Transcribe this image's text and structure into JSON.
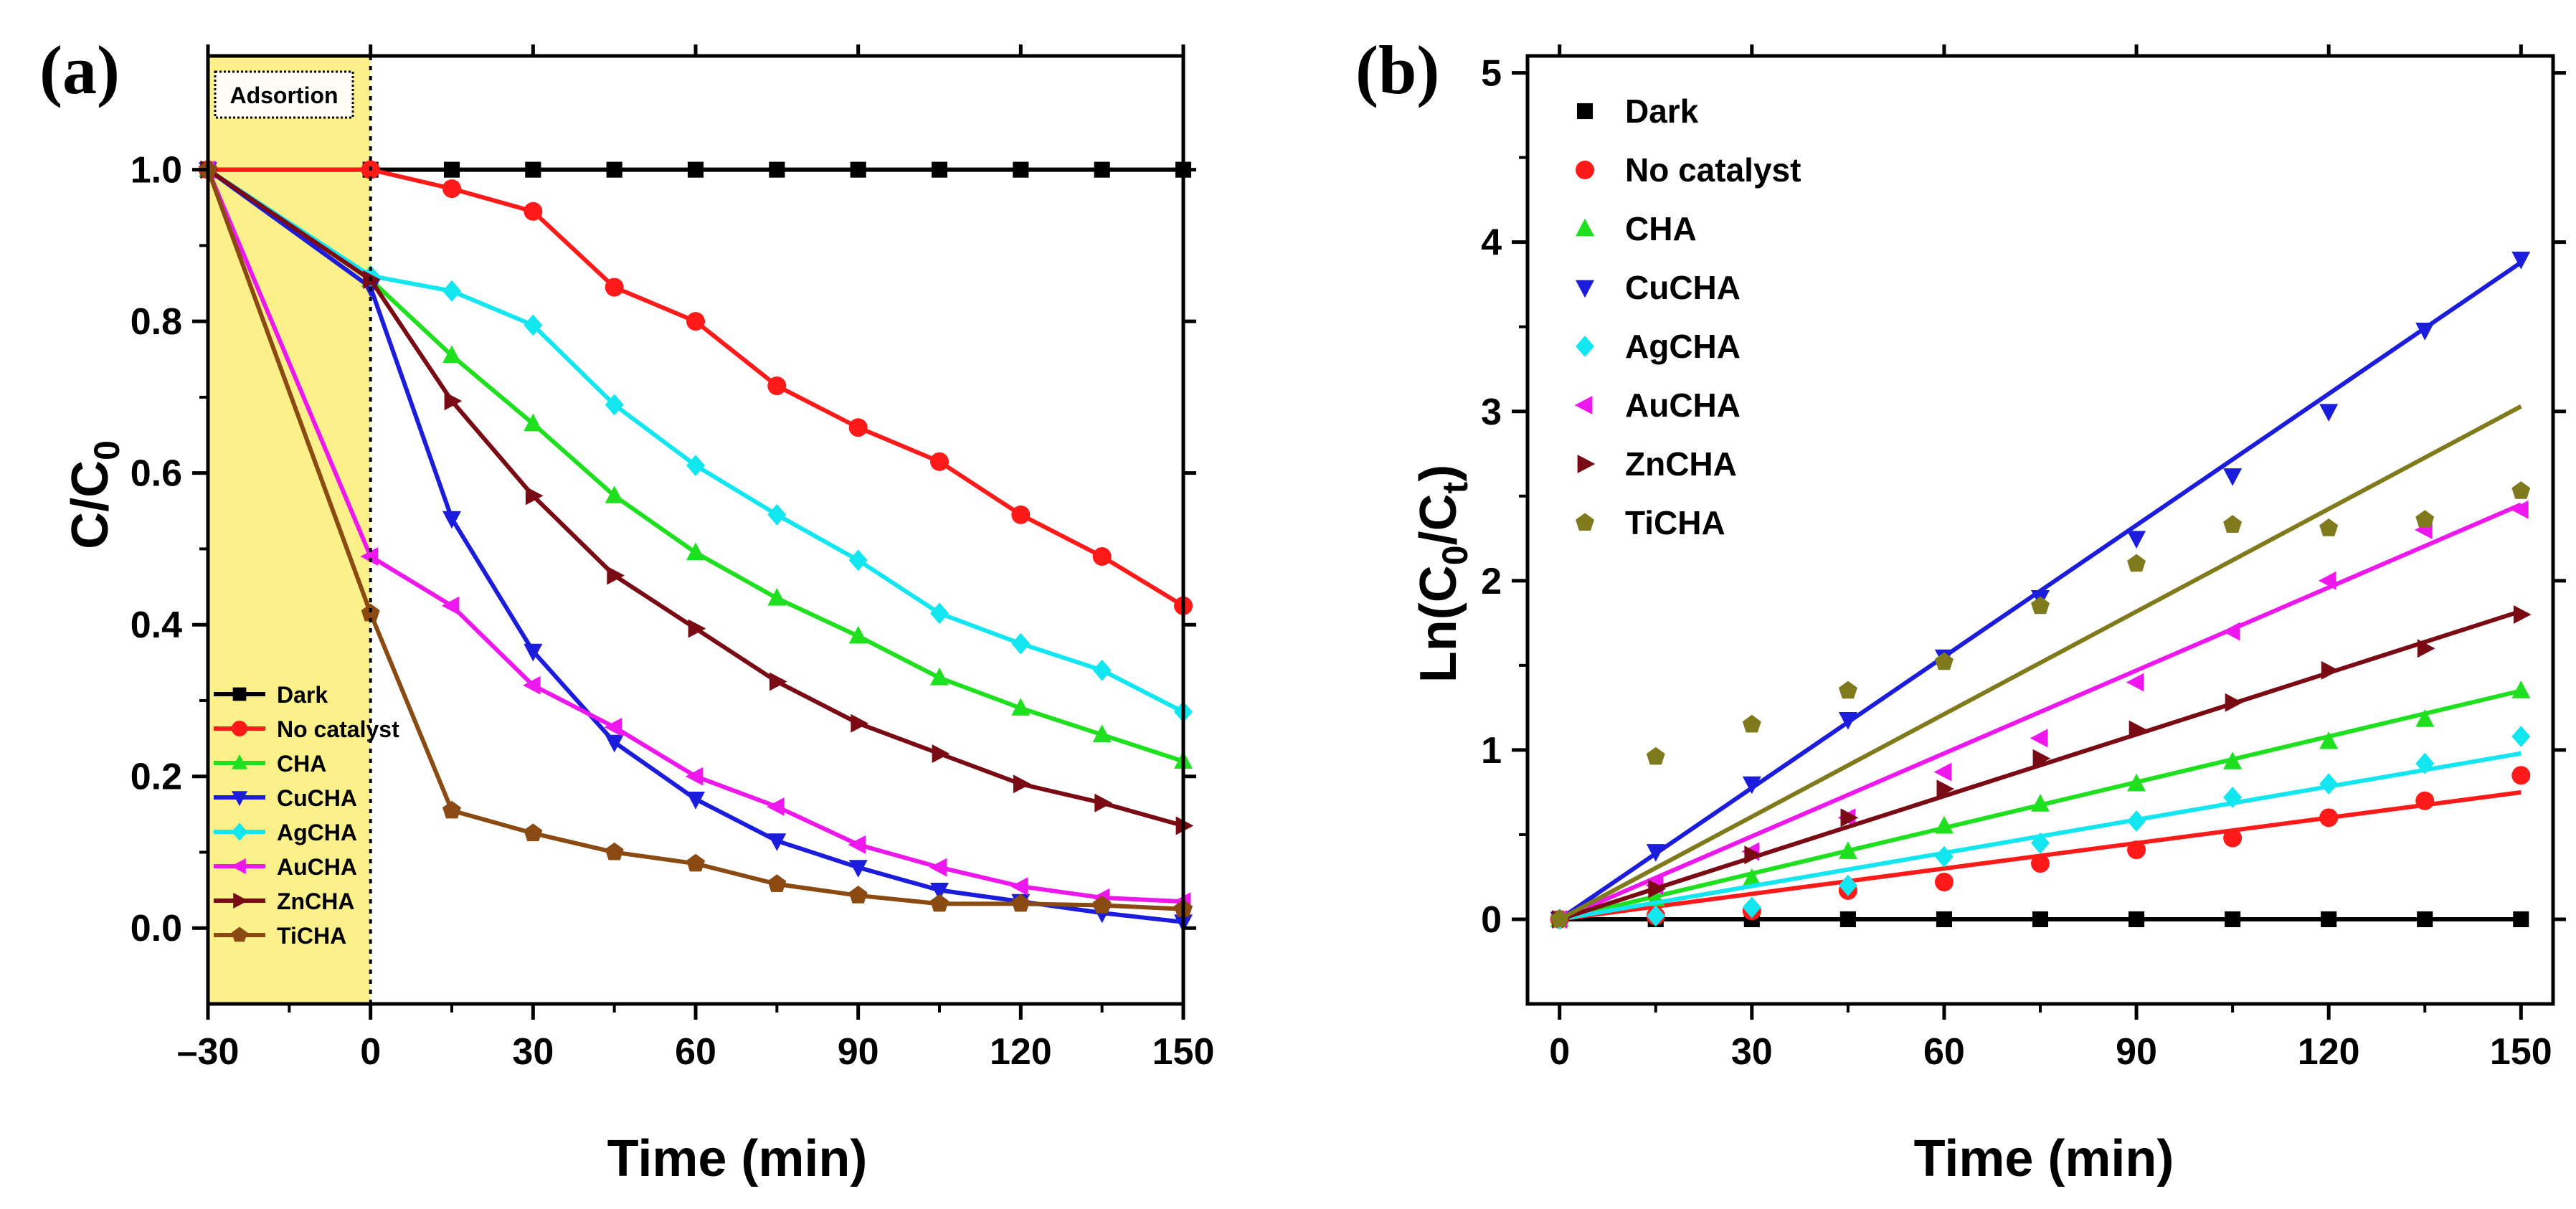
{
  "chart_data": [
    {
      "type": "line",
      "panel_label": "(a)",
      "xlabel": "Time (min)",
      "ylabel": "C/C0",
      "xlim": [
        -30,
        150
      ],
      "ylim": [
        -0.1,
        1.15
      ],
      "xticks": [
        -30,
        0,
        30,
        60,
        90,
        120,
        150
      ],
      "xtick_labels": [
        "–30",
        "0",
        "30",
        "60",
        "90",
        "120",
        "150"
      ],
      "yticks": [
        0.0,
        0.2,
        0.4,
        0.6,
        0.8,
        1.0
      ],
      "ytick_labels": [
        "0.0",
        "0.2",
        "0.4",
        "0.6",
        "0.8",
        "1.0"
      ],
      "adsorption_label": "Adsortion",
      "shaded_region": [
        -30,
        0
      ],
      "legend_position": "bottom-left",
      "x": [
        -30,
        0,
        15,
        30,
        45,
        60,
        75,
        90,
        105,
        120,
        135,
        150
      ],
      "series": [
        {
          "name": "Dark",
          "color": "#000000",
          "marker": "square",
          "values": [
            1.0,
            1.0,
            1.0,
            1.0,
            1.0,
            1.0,
            1.0,
            1.0,
            1.0,
            1.0,
            1.0,
            1.0
          ]
        },
        {
          "name": "No catalyst",
          "color": "#ff1a1a",
          "marker": "circle",
          "values": [
            1.0,
            1.0,
            0.975,
            0.945,
            0.845,
            0.8,
            0.715,
            0.66,
            0.615,
            0.545,
            0.49,
            0.425
          ]
        },
        {
          "name": "CHA",
          "color": "#1fe01f",
          "marker": "triangle-up",
          "values": [
            1.0,
            0.855,
            0.755,
            0.665,
            0.57,
            0.495,
            0.435,
            0.385,
            0.33,
            0.29,
            0.255,
            0.22
          ]
        },
        {
          "name": "CuCHA",
          "color": "#1c1cdc",
          "marker": "triangle-down",
          "values": [
            1.0,
            0.845,
            0.54,
            0.365,
            0.245,
            0.17,
            0.115,
            0.08,
            0.05,
            0.035,
            0.02,
            0.008
          ]
        },
        {
          "name": "AgCHA",
          "color": "#12e6f0",
          "marker": "diamond",
          "values": [
            1.0,
            0.86,
            0.84,
            0.795,
            0.69,
            0.61,
            0.545,
            0.485,
            0.415,
            0.375,
            0.34,
            0.285
          ]
        },
        {
          "name": "AuCHA",
          "color": "#ee18ee",
          "marker": "triangle-left",
          "values": [
            1.0,
            0.49,
            0.425,
            0.32,
            0.265,
            0.2,
            0.16,
            0.11,
            0.08,
            0.055,
            0.04,
            0.035
          ]
        },
        {
          "name": "ZnCHA",
          "color": "#7a0a14",
          "marker": "triangle-right",
          "values": [
            1.0,
            0.855,
            0.695,
            0.57,
            0.465,
            0.395,
            0.325,
            0.27,
            0.23,
            0.19,
            0.165,
            0.135
          ]
        },
        {
          "name": "TiCHA",
          "color": "#8a4a12",
          "marker": "pentagon",
          "values": [
            1.0,
            0.415,
            0.155,
            0.125,
            0.1,
            0.085,
            0.058,
            0.043,
            0.032,
            0.032,
            0.03,
            0.025
          ]
        }
      ]
    },
    {
      "type": "scatter",
      "panel_label": "(b)",
      "xlabel": "Time (min)",
      "ylabel": "Ln(C0/Ct)",
      "xlim": [
        -5,
        155
      ],
      "ylim": [
        -0.5,
        5.1
      ],
      "xticks": [
        0,
        30,
        60,
        90,
        120,
        150
      ],
      "xtick_labels": [
        "0",
        "30",
        "60",
        "90",
        "120",
        "150"
      ],
      "yticks": [
        0,
        1,
        2,
        3,
        4,
        5
      ],
      "ytick_labels": [
        "0",
        "1",
        "2",
        "3",
        "4",
        "5"
      ],
      "legend_position": "top-left",
      "x": [
        0,
        15,
        30,
        45,
        60,
        75,
        90,
        105,
        120,
        135,
        150
      ],
      "series": [
        {
          "name": "Dark",
          "color": "#000000",
          "marker": "square",
          "values": [
            0,
            0,
            0,
            0,
            0,
            0,
            0,
            0,
            0,
            0,
            0
          ],
          "fit_end": 0.0
        },
        {
          "name": "No catalyst",
          "color": "#ff1a1a",
          "marker": "circle",
          "values": [
            0,
            0.02,
            0.05,
            0.17,
            0.22,
            0.33,
            0.41,
            0.48,
            0.6,
            0.7,
            0.85
          ],
          "fit_end": 0.75
        },
        {
          "name": "CHA",
          "color": "#1fe01f",
          "marker": "triangle-up",
          "values": [
            0,
            0.12,
            0.24,
            0.4,
            0.55,
            0.68,
            0.8,
            0.93,
            1.05,
            1.18,
            1.35
          ],
          "fit_end": 1.35
        },
        {
          "name": "CuCHA",
          "color": "#1c1cdc",
          "marker": "triangle-down",
          "values": [
            0,
            0.4,
            0.8,
            1.18,
            1.55,
            1.9,
            2.25,
            2.62,
            3.0,
            3.48,
            3.9
          ],
          "fit_end": 3.88
        },
        {
          "name": "AgCHA",
          "color": "#12e6f0",
          "marker": "diamond",
          "values": [
            0,
            0.02,
            0.07,
            0.2,
            0.37,
            0.45,
            0.58,
            0.72,
            0.8,
            0.92,
            1.08
          ],
          "fit_end": 0.98
        },
        {
          "name": "AuCHA",
          "color": "#ee18ee",
          "marker": "triangle-left",
          "values": [
            0,
            0.2,
            0.4,
            0.6,
            0.87,
            1.07,
            1.4,
            1.7,
            2.0,
            2.3,
            2.42
          ],
          "fit_end": 2.45
        },
        {
          "name": "ZnCHA",
          "color": "#7a0a14",
          "marker": "triangle-right",
          "values": [
            0,
            0.18,
            0.38,
            0.6,
            0.77,
            0.95,
            1.12,
            1.28,
            1.47,
            1.6,
            1.8
          ],
          "fit_end": 1.82
        },
        {
          "name": "TiCHA",
          "color": "#7f7a1c",
          "marker": "pentagon",
          "values": [
            0,
            0.96,
            1.15,
            1.35,
            1.52,
            1.85,
            2.1,
            2.33,
            2.31,
            2.36,
            2.53
          ],
          "fit_end": 3.03
        }
      ]
    }
  ]
}
